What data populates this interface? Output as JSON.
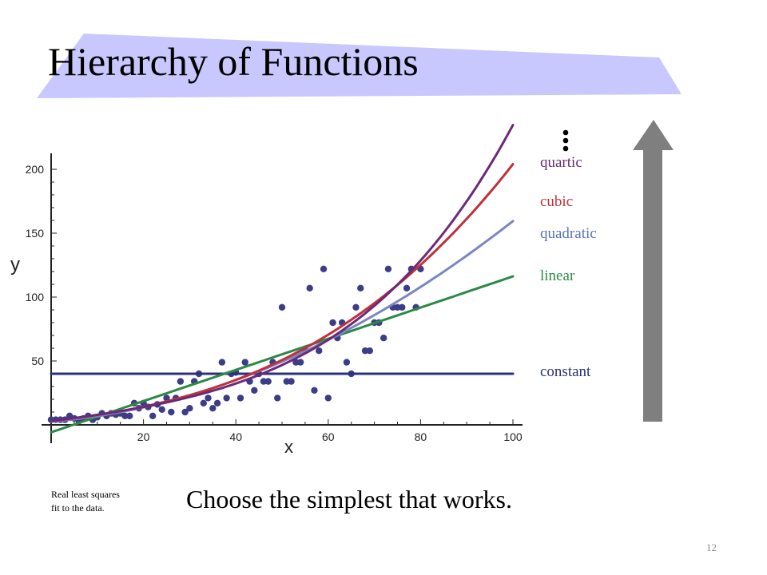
{
  "slide": {
    "title": "Hierarchy of Functions",
    "subtitle": "Choose the simplest that works.",
    "footnote": "Real least squares fit to the data.",
    "page_number": "12",
    "banner_color": "#c8c8ff"
  },
  "legend": {
    "quartic": "quartic",
    "cubic": "cubic",
    "quadratic": "quadratic",
    "linear": "linear",
    "constant": "constant"
  },
  "colors": {
    "points": "#3b3d86",
    "constant": "#2b3279",
    "linear": "#2a8a45",
    "quadratic": "#7b86c0",
    "cubic": "#c0303a",
    "quartic": "#6b2a78",
    "arrow": "#7f7f7f"
  },
  "icons": {
    "continuation": "vertical-ellipsis-icon",
    "arrow": "up-arrow-icon"
  },
  "chart_data": {
    "type": "scatter",
    "xlabel": "x",
    "ylabel": "y",
    "xlim": [
      0,
      100
    ],
    "ylim": [
      -10,
      205
    ],
    "xticks": [
      20,
      40,
      60,
      80,
      100
    ],
    "yticks": [
      50,
      100,
      150,
      200
    ],
    "grid": false,
    "points": [
      [
        0,
        4
      ],
      [
        1,
        4
      ],
      [
        2,
        4
      ],
      [
        3,
        4
      ],
      [
        4,
        7
      ],
      [
        5,
        5
      ],
      [
        6,
        3
      ],
      [
        7,
        5
      ],
      [
        8,
        7
      ],
      [
        9,
        4
      ],
      [
        10,
        6
      ],
      [
        11,
        9
      ],
      [
        12,
        7
      ],
      [
        13,
        9
      ],
      [
        14,
        8
      ],
      [
        15,
        9
      ],
      [
        16,
        7
      ],
      [
        17,
        7
      ],
      [
        18,
        17
      ],
      [
        19,
        13
      ],
      [
        20,
        17
      ],
      [
        21,
        14
      ],
      [
        22,
        7
      ],
      [
        23,
        16
      ],
      [
        24,
        12
      ],
      [
        25,
        21
      ],
      [
        26,
        10
      ],
      [
        27,
        21
      ],
      [
        28,
        34
      ],
      [
        29,
        10
      ],
      [
        30,
        13
      ],
      [
        31,
        34
      ],
      [
        32,
        40
      ],
      [
        33,
        17
      ],
      [
        34,
        21
      ],
      [
        35,
        13
      ],
      [
        36,
        17
      ],
      [
        37,
        49
      ],
      [
        38,
        21
      ],
      [
        39,
        40
      ],
      [
        40,
        41
      ],
      [
        41,
        21
      ],
      [
        42,
        49
      ],
      [
        43,
        34
      ],
      [
        44,
        27
      ],
      [
        45,
        40
      ],
      [
        46,
        34
      ],
      [
        47,
        34
      ],
      [
        48,
        49
      ],
      [
        49,
        21
      ],
      [
        50,
        92
      ],
      [
        51,
        34
      ],
      [
        52,
        34
      ],
      [
        53,
        49
      ],
      [
        54,
        49
      ],
      [
        55,
        58
      ],
      [
        56,
        107
      ],
      [
        57,
        27
      ],
      [
        58,
        58
      ],
      [
        59,
        122
      ],
      [
        60,
        21
      ],
      [
        61,
        80
      ],
      [
        62,
        68
      ],
      [
        63,
        80
      ],
      [
        64,
        49
      ],
      [
        65,
        40
      ],
      [
        66,
        92
      ],
      [
        67,
        107
      ],
      [
        68,
        58
      ],
      [
        69,
        58
      ],
      [
        70,
        80
      ],
      [
        71,
        80
      ],
      [
        72,
        68
      ],
      [
        73,
        122
      ],
      [
        74,
        92
      ],
      [
        75,
        92
      ],
      [
        76,
        92
      ],
      [
        77,
        107
      ],
      [
        78,
        122
      ],
      [
        79,
        92
      ],
      [
        80,
        122
      ]
    ],
    "series": [
      {
        "name": "constant",
        "coefficients": [
          40
        ]
      },
      {
        "name": "linear",
        "coefficients": [
          -5.8,
          1.22
        ]
      },
      {
        "name": "quadratic",
        "coefficients": [
          2.5,
          0.31,
          0.0126
        ]
      },
      {
        "name": "cubic",
        "coefficients": [
          3.0,
          0.4,
          0.0061,
          0.0001
        ]
      },
      {
        "name": "quartic",
        "coefficients": [
          3.0,
          0.45,
          0.0034,
          5.26e-05,
          1e-06
        ]
      }
    ]
  }
}
